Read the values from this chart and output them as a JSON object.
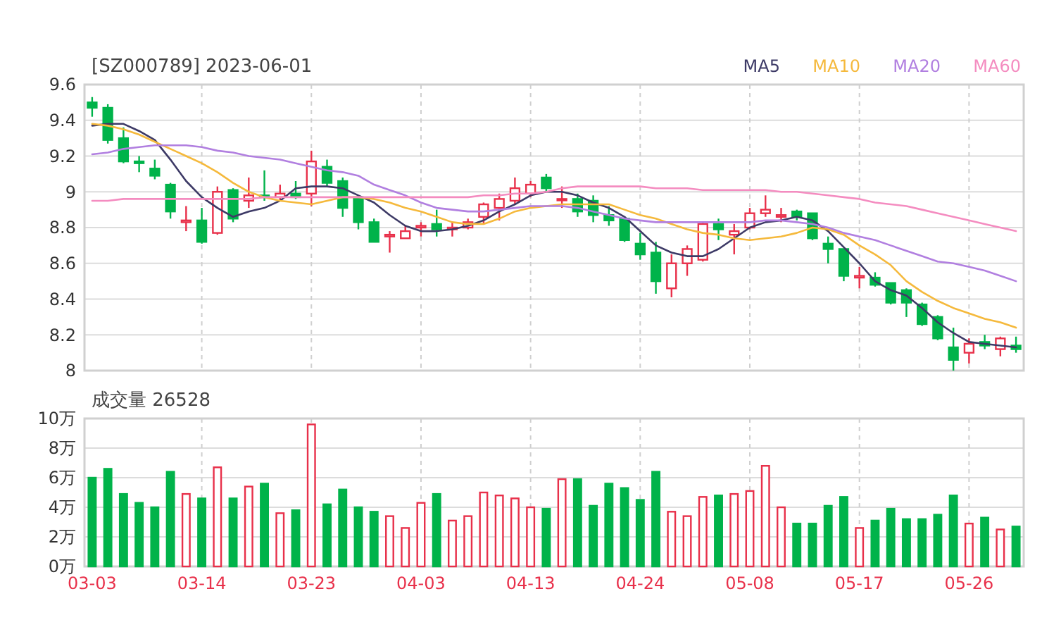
{
  "chart_data": [
    {
      "type": "candlestick",
      "title": "[SZ000789] 2023-06-01",
      "categories": [
        null,
        null,
        null,
        null,
        null,
        null,
        null,
        null,
        null,
        null,
        null,
        null,
        null,
        null,
        null,
        null,
        null,
        null,
        null,
        null,
        null,
        null,
        null,
        null,
        null,
        null,
        null,
        null,
        null,
        null,
        null,
        null,
        null,
        null,
        null,
        null,
        null,
        null,
        null,
        null,
        null,
        null,
        null,
        null,
        null,
        null,
        null,
        null,
        null,
        null,
        null,
        null,
        null,
        null,
        null,
        null,
        null,
        null,
        null,
        null
      ],
      "ohlc": [
        [
          9.5,
          9.53,
          9.42,
          9.47
        ],
        [
          9.47,
          9.49,
          9.27,
          9.29
        ],
        [
          9.3,
          9.36,
          9.16,
          9.17
        ],
        [
          9.17,
          9.2,
          9.11,
          9.16
        ],
        [
          9.13,
          9.18,
          9.07,
          9.09
        ],
        [
          9.04,
          9.05,
          8.85,
          8.89
        ],
        [
          8.83,
          8.92,
          8.78,
          8.84
        ],
        [
          8.84,
          8.91,
          8.71,
          8.72
        ],
        [
          8.77,
          9.03,
          8.76,
          9.0
        ],
        [
          9.01,
          9.02,
          8.83,
          8.85
        ],
        [
          8.95,
          9.08,
          8.91,
          8.98
        ],
        [
          8.98,
          9.12,
          8.95,
          8.97
        ],
        [
          8.97,
          9.04,
          8.95,
          8.99
        ],
        [
          8.99,
          9.06,
          8.96,
          8.97
        ],
        [
          8.99,
          9.23,
          8.92,
          9.17
        ],
        [
          9.14,
          9.18,
          9.03,
          9.05
        ],
        [
          9.06,
          9.08,
          8.86,
          8.91
        ],
        [
          8.97,
          8.98,
          8.79,
          8.83
        ],
        [
          8.83,
          8.85,
          8.72,
          8.72
        ],
        [
          8.75,
          8.78,
          8.66,
          8.76
        ],
        [
          8.74,
          8.81,
          8.74,
          8.78
        ],
        [
          8.8,
          8.83,
          8.75,
          8.81
        ],
        [
          8.82,
          8.9,
          8.75,
          8.79
        ],
        [
          8.79,
          8.83,
          8.75,
          8.8
        ],
        [
          8.8,
          8.85,
          8.79,
          8.83
        ],
        [
          8.86,
          8.94,
          8.82,
          8.93
        ],
        [
          8.91,
          8.99,
          8.84,
          8.96
        ],
        [
          8.95,
          9.08,
          8.93,
          9.02
        ],
        [
          8.99,
          9.06,
          8.97,
          9.04
        ],
        [
          9.08,
          9.1,
          9.0,
          9.02
        ],
        [
          8.96,
          9.03,
          8.91,
          8.96
        ],
        [
          8.96,
          8.99,
          8.86,
          8.89
        ],
        [
          8.95,
          8.98,
          8.83,
          8.87
        ],
        [
          8.87,
          8.92,
          8.81,
          8.84
        ],
        [
          8.85,
          8.85,
          8.72,
          8.73
        ],
        [
          8.71,
          8.77,
          8.62,
          8.65
        ],
        [
          8.66,
          8.72,
          8.43,
          8.5
        ],
        [
          8.46,
          8.65,
          8.41,
          8.6
        ],
        [
          8.6,
          8.7,
          8.53,
          8.68
        ],
        [
          8.62,
          8.83,
          8.61,
          8.82
        ],
        [
          8.82,
          8.85,
          8.73,
          8.79
        ],
        [
          8.76,
          8.82,
          8.65,
          8.78
        ],
        [
          8.8,
          8.91,
          8.79,
          8.88
        ],
        [
          8.88,
          8.98,
          8.86,
          8.9
        ],
        [
          8.86,
          8.91,
          8.83,
          8.87
        ],
        [
          8.89,
          8.9,
          8.84,
          8.86
        ],
        [
          8.88,
          8.88,
          8.73,
          8.74
        ],
        [
          8.71,
          8.75,
          8.6,
          8.68
        ],
        [
          8.68,
          8.68,
          8.5,
          8.53
        ],
        [
          8.52,
          8.58,
          8.46,
          8.53
        ],
        [
          8.52,
          8.55,
          8.47,
          8.48
        ],
        [
          8.49,
          8.49,
          8.37,
          8.38
        ],
        [
          8.45,
          8.46,
          8.3,
          8.38
        ],
        [
          8.37,
          8.38,
          8.25,
          8.26
        ],
        [
          8.3,
          8.31,
          8.17,
          8.18
        ],
        [
          8.13,
          8.24,
          8.0,
          8.06
        ],
        [
          8.1,
          8.18,
          8.04,
          8.15
        ],
        [
          8.16,
          8.2,
          8.12,
          8.14
        ],
        [
          8.12,
          8.19,
          8.08,
          8.18
        ],
        [
          8.14,
          8.19,
          8.1,
          8.12
        ]
      ],
      "series": [
        {
          "name": "MA5",
          "type": "line",
          "color": "#3d3a66",
          "values": [
            9.37,
            9.38,
            9.38,
            9.34,
            9.29,
            9.18,
            9.06,
            8.97,
            8.91,
            8.86,
            8.89,
            8.91,
            8.95,
            9.02,
            9.03,
            9.03,
            9.02,
            8.98,
            8.94,
            8.87,
            8.81,
            8.78,
            8.78,
            8.79,
            8.81,
            8.84,
            8.89,
            8.93,
            8.98,
            9.0,
            9.0,
            8.98,
            8.94,
            8.91,
            8.86,
            8.78,
            8.7,
            8.66,
            8.64,
            8.64,
            8.68,
            8.74,
            8.8,
            8.83,
            8.84,
            8.86,
            8.84,
            8.78,
            8.69,
            8.6,
            8.5,
            8.45,
            8.42,
            8.35,
            8.27,
            8.21,
            8.16,
            8.15,
            8.14,
            8.13
          ]
        },
        {
          "name": "MA10",
          "type": "line",
          "color": "#f5b93c",
          "values": [
            9.38,
            9.37,
            9.35,
            9.32,
            9.28,
            9.24,
            9.2,
            9.16,
            9.11,
            9.05,
            9.0,
            8.97,
            8.95,
            8.94,
            8.93,
            8.95,
            8.97,
            8.97,
            8.96,
            8.94,
            8.91,
            8.89,
            8.86,
            8.83,
            8.82,
            8.82,
            8.85,
            8.89,
            8.91,
            8.92,
            8.93,
            8.93,
            8.93,
            8.93,
            8.9,
            8.87,
            8.85,
            8.82,
            8.79,
            8.77,
            8.76,
            8.74,
            8.73,
            8.74,
            8.75,
            8.77,
            8.8,
            8.79,
            8.76,
            8.7,
            8.65,
            8.59,
            8.5,
            8.44,
            8.39,
            8.35,
            8.32,
            8.29,
            8.27,
            8.24
          ]
        },
        {
          "name": "MA20",
          "type": "line",
          "color": "#b17fe0",
          "values": [
            9.21,
            9.22,
            9.24,
            9.25,
            9.26,
            9.26,
            9.26,
            9.25,
            9.23,
            9.22,
            9.2,
            9.19,
            9.18,
            9.16,
            9.14,
            9.12,
            9.11,
            9.09,
            9.04,
            9.01,
            8.98,
            8.94,
            8.91,
            8.9,
            8.89,
            8.89,
            8.9,
            8.91,
            8.92,
            8.92,
            8.92,
            8.91,
            8.89,
            8.87,
            8.85,
            8.84,
            8.83,
            8.83,
            8.83,
            8.83,
            8.83,
            8.83,
            8.83,
            8.84,
            8.84,
            8.83,
            8.82,
            8.8,
            8.77,
            8.75,
            8.73,
            8.7,
            8.67,
            8.64,
            8.61,
            8.6,
            8.58,
            8.56,
            8.53,
            8.5
          ]
        },
        {
          "name": "MA60",
          "type": "line",
          "color": "#f48cc0",
          "values": [
            8.95,
            8.95,
            8.96,
            8.96,
            8.96,
            8.96,
            8.96,
            8.96,
            8.96,
            8.96,
            8.96,
            8.97,
            8.97,
            8.97,
            8.97,
            8.97,
            8.97,
            8.97,
            8.97,
            8.97,
            8.97,
            8.97,
            8.97,
            8.97,
            8.97,
            8.98,
            8.98,
            8.99,
            8.99,
            9.0,
            9.02,
            9.03,
            9.03,
            9.03,
            9.03,
            9.03,
            9.02,
            9.02,
            9.02,
            9.01,
            9.01,
            9.01,
            9.01,
            9.01,
            9.0,
            9.0,
            8.99,
            8.98,
            8.97,
            8.96,
            8.94,
            8.93,
            8.92,
            8.9,
            8.88,
            8.86,
            8.84,
            8.82,
            8.8,
            8.78
          ]
        }
      ],
      "ylim": [
        8,
        9.6
      ],
      "yticks": [
        8,
        8.2,
        8.4,
        8.6,
        8.8,
        9,
        9.2,
        9.4,
        9.6
      ],
      "grid": true,
      "legend": "top right",
      "tick_labels": "y"
    },
    {
      "type": "bar",
      "title": "成交量 26528",
      "categories": [
        "03-03",
        null,
        null,
        null,
        null,
        null,
        null,
        "03-14",
        null,
        null,
        null,
        null,
        null,
        null,
        "03-23",
        null,
        null,
        null,
        null,
        null,
        null,
        "04-03",
        null,
        null,
        null,
        null,
        null,
        null,
        "04-13",
        null,
        null,
        null,
        null,
        null,
        null,
        "04-24",
        null,
        null,
        null,
        null,
        null,
        null,
        "05-08",
        null,
        null,
        null,
        null,
        null,
        null,
        "05-17",
        null,
        null,
        null,
        null,
        null,
        null,
        "05-26",
        null,
        null,
        null
      ],
      "series": [
        {
          "color": "#e8304a",
          "values": [
            null,
            null,
            null,
            null,
            null,
            null,
            4.9,
            null,
            6.7,
            null,
            5.4,
            null,
            3.6,
            null,
            9.6,
            null,
            null,
            null,
            null,
            3.4,
            2.6,
            4.3,
            null,
            3.1,
            3.4,
            5.0,
            4.8,
            4.6,
            4.0,
            null,
            5.9,
            null,
            null,
            null,
            null,
            null,
            null,
            3.7,
            3.4,
            4.7,
            null,
            4.9,
            5.1,
            6.8,
            4.0,
            null,
            null,
            null,
            null,
            2.6,
            null,
            null,
            null,
            null,
            null,
            null,
            2.9,
            null,
            2.5,
            null
          ]
        },
        {
          "color": "#00b34a",
          "values": [
            6.0,
            6.6,
            4.9,
            4.3,
            4.0,
            6.4,
            null,
            4.6,
            null,
            4.6,
            null,
            5.6,
            null,
            3.8,
            null,
            4.2,
            5.2,
            4.0,
            3.7,
            null,
            null,
            null,
            4.9,
            null,
            null,
            null,
            null,
            null,
            null,
            3.9,
            null,
            5.9,
            4.1,
            5.6,
            5.3,
            4.5,
            6.4,
            null,
            null,
            null,
            4.8,
            null,
            null,
            null,
            null,
            2.9,
            2.9,
            4.1,
            4.7,
            null,
            3.1,
            3.9,
            3.2,
            3.2,
            3.5,
            4.8,
            null,
            3.3,
            null,
            2.7
          ]
        }
      ],
      "ylim": [
        0,
        10
      ],
      "yticks": [
        {
          "value": 0,
          "label": "0万"
        },
        {
          "value": 2,
          "label": "2万"
        },
        {
          "value": 4,
          "label": "4万"
        },
        {
          "value": 6,
          "label": "6万"
        },
        {
          "value": 8,
          "label": "8万"
        },
        {
          "value": 10,
          "label": "10万"
        }
      ],
      "grid": true
    }
  ]
}
